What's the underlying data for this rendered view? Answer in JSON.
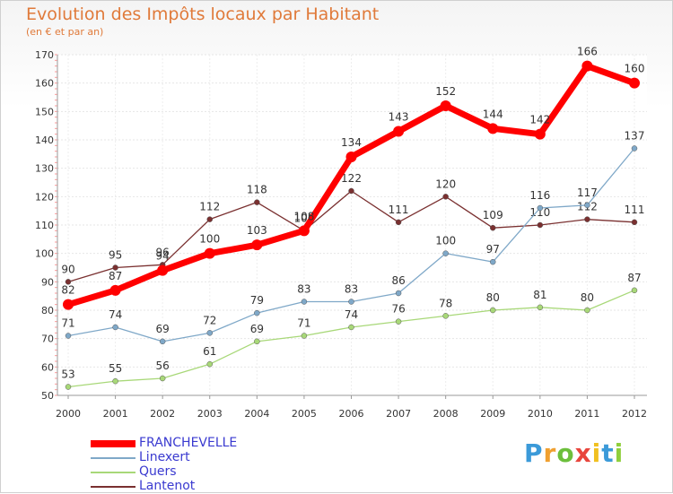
{
  "title": "Evolution des Impôts locaux par Habitant",
  "subtitle": "(en € et par an)",
  "logo": "Proxiti",
  "chart_data": {
    "type": "line",
    "x": [
      "2000",
      "2001",
      "2002",
      "2003",
      "2004",
      "2005",
      "2006",
      "2007",
      "2008",
      "2009",
      "2010",
      "2011",
      "2012"
    ],
    "ylim": [
      50,
      170
    ],
    "yticks": [
      50,
      60,
      70,
      80,
      90,
      100,
      110,
      120,
      130,
      140,
      150,
      160,
      170
    ],
    "grid": true,
    "legend_position": "bottom-left",
    "series": [
      {
        "name": "FRANCHEVELLE",
        "color": "#ff0000",
        "values": [
          82,
          87,
          94,
          100,
          103,
          108,
          134,
          143,
          152,
          144,
          142,
          166,
          160
        ]
      },
      {
        "name": "Linexert",
        "color": "#7fa8c8",
        "values": [
          71,
          74,
          69,
          72,
          79,
          83,
          83,
          86,
          100,
          97,
          116,
          117,
          137
        ]
      },
      {
        "name": "Quers",
        "color": "#a8d878",
        "values": [
          53,
          55,
          56,
          61,
          69,
          71,
          74,
          76,
          78,
          80,
          81,
          80,
          87
        ]
      },
      {
        "name": "Lantenot",
        "color": "#7a3030",
        "values": [
          90,
          95,
          96,
          112,
          118,
          108,
          122,
          111,
          120,
          109,
          110,
          112,
          111
        ]
      }
    ]
  }
}
